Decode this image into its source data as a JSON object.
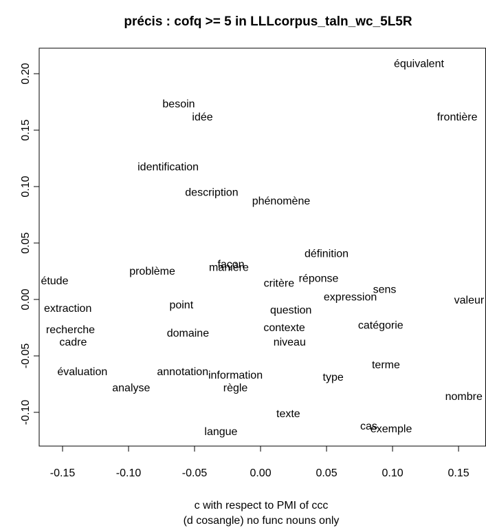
{
  "chart_data": {
    "type": "scatter",
    "title": "précis : cofq >= 5 in LLLcorpus_taln_wc_5L5R",
    "xlabel": [
      "c with respect to PMI of ccc",
      "(d cosangle) no func nouns only"
    ],
    "xlim": [
      -0.1677,
      0.1708
    ],
    "ylim": [
      -0.1299,
      0.2226
    ],
    "xticks": [
      -0.15,
      {
        "value": -0.1,
        "label": "-0.10"
      },
      -0.05,
      {
        "value": 0,
        "label": "0.00"
      },
      0.05,
      {
        "value": 0.1,
        "label": "0.10"
      },
      0.15
    ],
    "yticks": [
      {
        "value": -0.1,
        "label": "-0.10"
      },
      -0.05,
      {
        "value": 0,
        "label": "0.00"
      },
      0.05,
      {
        "value": 0.1,
        "label": "0.10"
      },
      0.15,
      {
        "value": 0.2,
        "label": "0.20"
      }
    ],
    "color": "#000000",
    "labels": [
      "équivalent",
      "besoin",
      "idée",
      "frontière",
      "identification",
      "description",
      "phénomène",
      "définition",
      "problème",
      "façon",
      "manière",
      "étude",
      "critère",
      "réponse",
      "sens",
      "expression",
      "valeur",
      "extraction",
      "point",
      "question",
      "recherche",
      "cadre",
      "contexte",
      "catégorie",
      "domaine",
      "niveau",
      "terme",
      "évaluation",
      "annotation",
      "information",
      "type",
      "analyse",
      "règle",
      "nombre",
      "texte",
      "cas",
      "exemple",
      "langue"
    ],
    "x": [
      0.12,
      -0.062,
      -0.044,
      0.149,
      -0.07,
      -0.037,
      0.0156,
      0.05,
      -0.082,
      -0.0224,
      -0.024,
      -0.156,
      0.014,
      0.044,
      0.094,
      0.068,
      0.158,
      -0.146,
      -0.06,
      0.023,
      -0.144,
      -0.142,
      0.018,
      0.091,
      -0.055,
      0.022,
      0.095,
      -0.135,
      -0.059,
      -0.019,
      0.055,
      -0.098,
      -0.019,
      0.154,
      0.021,
      0.082,
      0.099,
      -0.03
    ],
    "y": [
      0.2085,
      0.1726,
      0.161,
      0.161,
      0.117,
      0.0945,
      0.0866,
      0.04,
      0.0244,
      0.0305,
      0.028,
      0.0159,
      0.014,
      0.018,
      0.0085,
      0.0018,
      -0.0012,
      -0.0085,
      -0.0055,
      -0.0098,
      -0.0274,
      -0.0384,
      -0.0256,
      -0.0232,
      -0.0305,
      -0.0384,
      -0.0585,
      -0.0646,
      -0.0646,
      -0.0677,
      -0.0695,
      -0.0787,
      -0.0787,
      -0.0866,
      -0.1018,
      -0.1128,
      -0.1152,
      -0.1177
    ]
  }
}
